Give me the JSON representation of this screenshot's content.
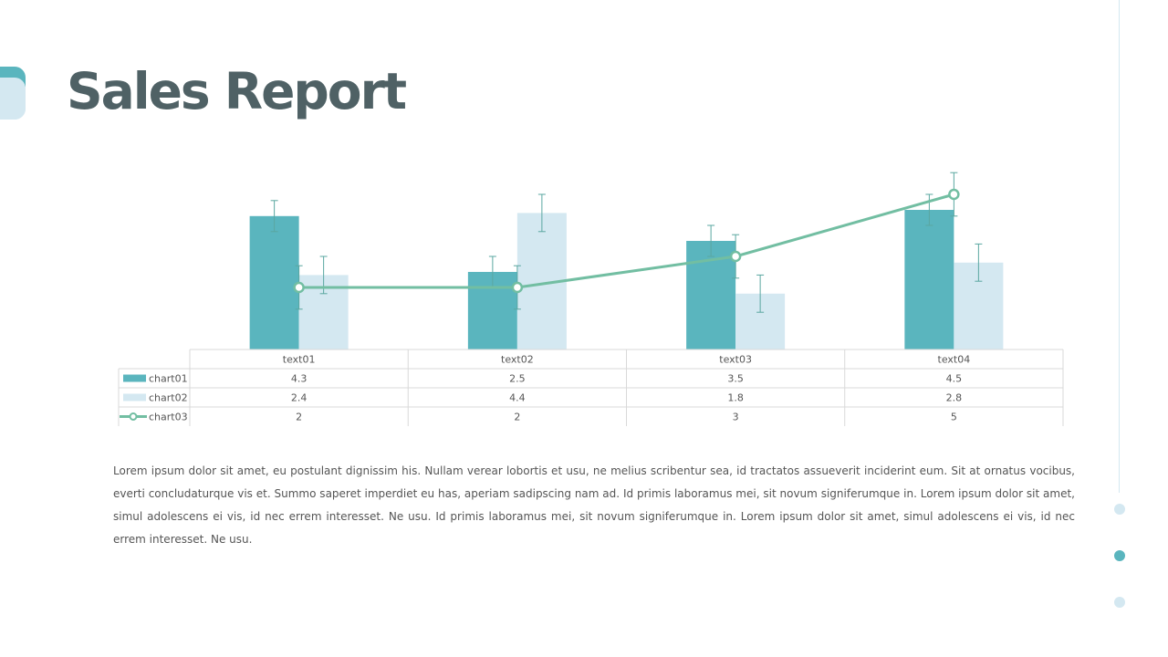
{
  "title": "Sales Report",
  "chart_data": {
    "type": "bar",
    "categories": [
      "text01",
      "text02",
      "text03",
      "text04"
    ],
    "ylim": [
      0,
      5
    ],
    "series": [
      {
        "name": "chart01",
        "type": "bar",
        "color": "#5ab5be",
        "values": [
          4.3,
          2.5,
          3.5,
          4.5
        ],
        "error": [
          0.5,
          0.5,
          0.5,
          0.5
        ]
      },
      {
        "name": "chart02",
        "type": "bar",
        "color": "#d4e8f1",
        "values": [
          2.4,
          4.4,
          1.8,
          2.8
        ],
        "error": [
          0.6,
          0.6,
          0.6,
          0.6
        ]
      },
      {
        "name": "chart03",
        "type": "line",
        "color": "#72bea2",
        "values": [
          2,
          2,
          3,
          5
        ],
        "error": [
          0.7,
          0.7,
          0.7,
          0.7
        ]
      }
    ]
  },
  "paragraph": "Lorem ipsum dolor sit amet, eu postulant dignissim his. Nullam verear lobortis et usu, ne melius scribentur sea, id tractatos assueverit inciderint eum. Sit at ornatus vocibus, everti concludaturque vis et. Summo saperet imperdiet eu has, aperiam sadipscing nam ad. Id primis laboramus mei, sit novum signiferumque in. Lorem ipsum dolor sit amet, simul adolescens ei vis, id nec errem interesset. Ne usu. Id primis laboramus mei, sit novum signiferumque in. Lorem ipsum dolor sit amet, simul adolescens ei vis, id nec errem interesset. Ne usu."
}
